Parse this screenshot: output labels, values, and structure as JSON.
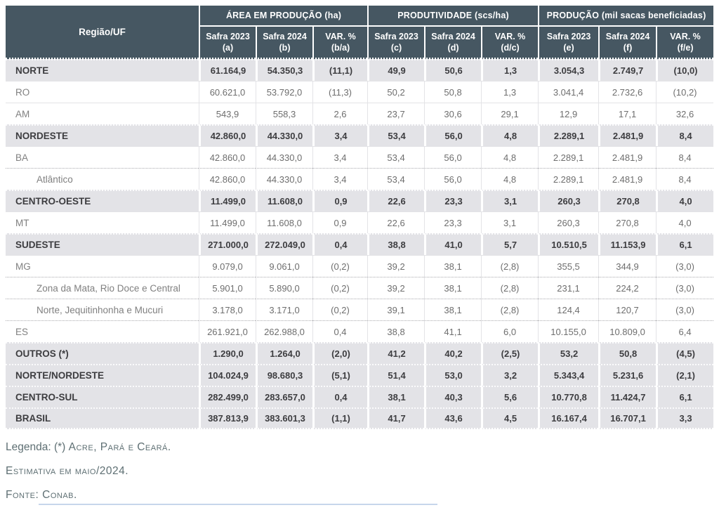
{
  "table": {
    "region_col_header": "Região/UF",
    "groups": [
      {
        "title": "ÁREA EM PRODUÇÃO (ha)"
      },
      {
        "title": "PRODUTIVIDADE (scs/ha)"
      },
      {
        "title": "PRODUÇÃO (mil sacas beneficiadas)"
      }
    ],
    "sub_columns": [
      {
        "label": "Safra 2023",
        "key": "(a)"
      },
      {
        "label": "Safra 2024",
        "key": "(b)"
      },
      {
        "label": "VAR. %",
        "key": "(b/a)"
      },
      {
        "label": "Safra 2023",
        "key": "(c)"
      },
      {
        "label": "Safra 2024",
        "key": "(d)"
      },
      {
        "label": "VAR. %",
        "key": "(d/c)"
      },
      {
        "label": "Safra 2023",
        "key": "(e)"
      },
      {
        "label": "Safra 2024",
        "key": "(f)"
      },
      {
        "label": "VAR. %",
        "key": "(f/e)"
      }
    ],
    "rows": [
      {
        "label": "NORTE",
        "type": "region",
        "dotted_top": false,
        "values": [
          "61.164,9",
          "54.350,3",
          "(11,1)",
          "49,9",
          "50,6",
          "1,3",
          "3.054,3",
          "2.749,7",
          "(10,0)"
        ]
      },
      {
        "label": "RO",
        "type": "state",
        "dotted_top": false,
        "values": [
          "60.621,0",
          "53.792,0",
          "(11,3)",
          "50,2",
          "50,8",
          "1,3",
          "3.041,4",
          "2.732,6",
          "(10,2)"
        ]
      },
      {
        "label": "AM",
        "type": "state",
        "dotted_top": false,
        "values": [
          "543,9",
          "558,3",
          "2,6",
          "23,7",
          "30,6",
          "29,1",
          "12,9",
          "17,1",
          "32,6"
        ]
      },
      {
        "label": "NORDESTE",
        "type": "region",
        "dotted_top": false,
        "values": [
          "42.860,0",
          "44.330,0",
          "3,4",
          "53,4",
          "56,0",
          "4,8",
          "2.289,1",
          "2.481,9",
          "8,4"
        ]
      },
      {
        "label": "BA",
        "type": "state",
        "dotted_top": false,
        "values": [
          "42.860,0",
          "44.330,0",
          "3,4",
          "53,4",
          "56,0",
          "4,8",
          "2.289,1",
          "2.481,9",
          "8,4"
        ]
      },
      {
        "label": "Atlântico",
        "type": "sub",
        "dotted_top": true,
        "values": [
          "42.860,0",
          "44.330,0",
          "3,4",
          "53,4",
          "56,0",
          "4,8",
          "2.289,1",
          "2.481,9",
          "8,4"
        ]
      },
      {
        "label": "CENTRO-OESTE",
        "type": "region",
        "dotted_top": false,
        "values": [
          "11.499,0",
          "11.608,0",
          "0,9",
          "22,6",
          "23,3",
          "3,1",
          "260,3",
          "270,8",
          "4,0"
        ]
      },
      {
        "label": "MT",
        "type": "state",
        "dotted_top": false,
        "values": [
          "11.499,0",
          "11.608,0",
          "0,9",
          "22,6",
          "23,3",
          "3,1",
          "260,3",
          "270,8",
          "4,0"
        ]
      },
      {
        "label": "SUDESTE",
        "type": "region",
        "dotted_top": false,
        "values": [
          "271.000,0",
          "272.049,0",
          "0,4",
          "38,8",
          "41,0",
          "5,7",
          "10.510,5",
          "11.153,9",
          "6,1"
        ]
      },
      {
        "label": "MG",
        "type": "state",
        "dotted_top": false,
        "values": [
          "9.079,0",
          "9.061,0",
          "(0,2)",
          "39,2",
          "38,1",
          "(2,8)",
          "355,5",
          "344,9",
          "(3,0)"
        ]
      },
      {
        "label": "Zona da Mata, Rio Doce e Central",
        "type": "sub",
        "dotted_top": true,
        "values": [
          "5.901,0",
          "5.890,0",
          "(0,2)",
          "39,2",
          "38,1",
          "(2,8)",
          "231,1",
          "224,2",
          "(3,0)"
        ]
      },
      {
        "label": "Norte, Jequitinhonha e Mucuri",
        "type": "sub",
        "dotted_top": true,
        "values": [
          "3.178,0",
          "3.171,0",
          "(0,2)",
          "39,1",
          "38,1",
          "(2,8)",
          "124,4",
          "120,7",
          "(3,0)"
        ]
      },
      {
        "label": "ES",
        "type": "state",
        "dotted_top": true,
        "values": [
          "261.921,0",
          "262.988,0",
          "0,4",
          "38,8",
          "41,1",
          "6,0",
          "10.155,0",
          "10.809,0",
          "6,4"
        ]
      },
      {
        "label": "OUTROS (*)",
        "type": "region",
        "dotted_top": false,
        "values": [
          "1.290,0",
          "1.264,0",
          "(2,0)",
          "41,2",
          "40,2",
          "(2,5)",
          "53,2",
          "50,8",
          "(4,5)"
        ]
      },
      {
        "label": "NORTE/NORDESTE",
        "type": "region",
        "dotted_top": false,
        "values": [
          "104.024,9",
          "98.680,3",
          "(5,1)",
          "51,4",
          "53,0",
          "3,2",
          "5.343,4",
          "5.231,6",
          "(2,1)"
        ]
      },
      {
        "label": "CENTRO-SUL",
        "type": "region",
        "dotted_top": false,
        "values": [
          "282.499,0",
          "283.657,0",
          "0,4",
          "38,1",
          "40,3",
          "5,6",
          "10.770,8",
          "11.424,7",
          "6,1"
        ]
      },
      {
        "label": "BRASIL",
        "type": "region",
        "dotted_top": false,
        "values": [
          "387.813,9",
          "383.601,3",
          "(1,1)",
          "41,7",
          "43,6",
          "4,5",
          "16.167,4",
          "16.707,1",
          "3,3"
        ]
      }
    ]
  },
  "footer": {
    "legend_prefix": "Legenda: (*) ",
    "legend_smallcaps": "Acre, Pará e Ceará.",
    "estimate": "Estimativa em maio/2024.",
    "source": "Fonte: Conab."
  },
  "colors": {
    "header_bg": "#465762",
    "region_row_bg": "#e3e3e7",
    "footer_text": "#5e6f73"
  }
}
